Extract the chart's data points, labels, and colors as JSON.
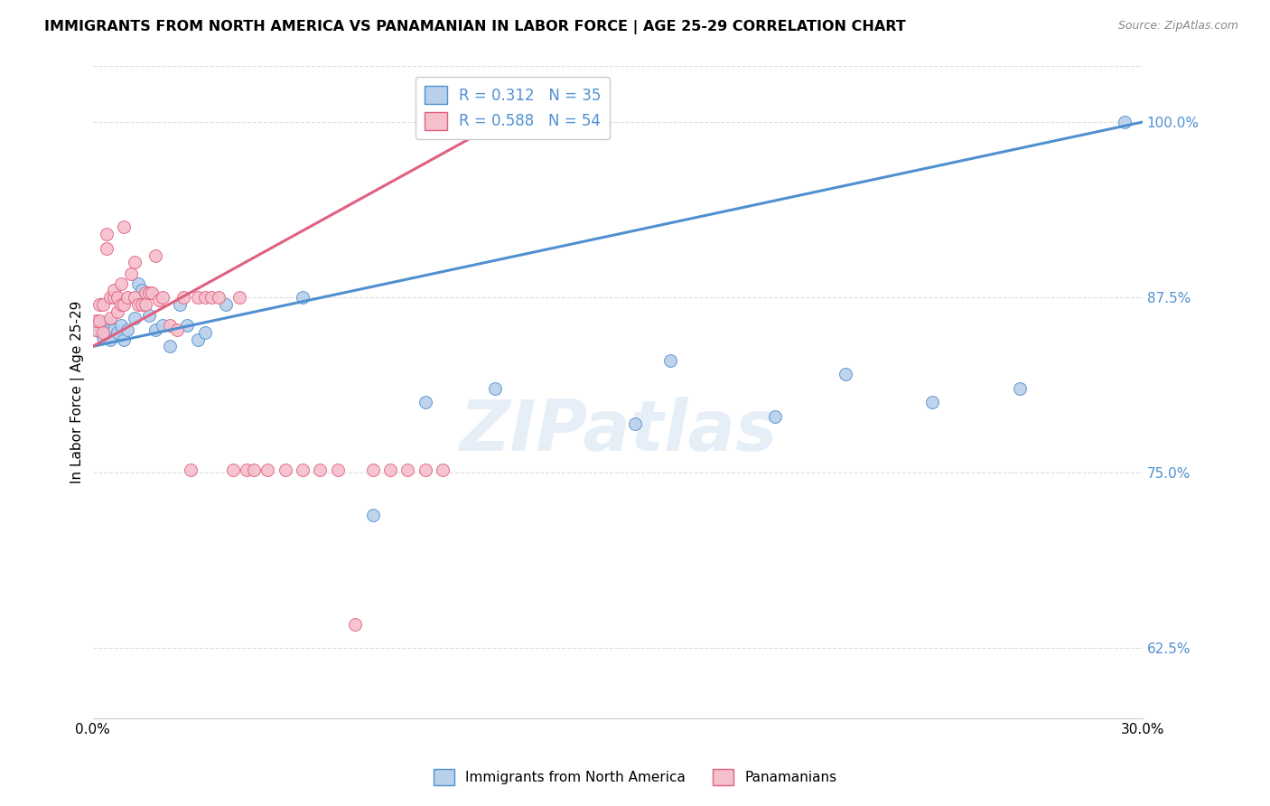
{
  "title": "IMMIGRANTS FROM NORTH AMERICA VS PANAMANIAN IN LABOR FORCE | AGE 25-29 CORRELATION CHART",
  "source": "Source: ZipAtlas.com",
  "ylabel": "In Labor Force | Age 25-29",
  "xlim": [
    0.0,
    0.3
  ],
  "ylim": [
    0.575,
    1.04
  ],
  "yticks": [
    0.625,
    0.75,
    0.875,
    1.0
  ],
  "ytick_labels": [
    "62.5%",
    "75.0%",
    "87.5%",
    "100.0%"
  ],
  "xticks": [
    0.0,
    0.05,
    0.1,
    0.15,
    0.2,
    0.25,
    0.3
  ],
  "xtick_labels": [
    "0.0%",
    "",
    "",
    "",
    "",
    "",
    "30.0%"
  ],
  "blue_R": 0.312,
  "blue_N": 35,
  "pink_R": 0.588,
  "pink_N": 54,
  "blue_color": "#b8d0ea",
  "pink_color": "#f5bfcc",
  "blue_line_color": "#5090d0",
  "pink_line_color": "#e06080",
  "legend_blue_label": "Immigrants from North America",
  "legend_pink_label": "Panamanians",
  "watermark": "ZIPatlas",
  "blue_x": [
    0.001,
    0.002,
    0.003,
    0.003,
    0.004,
    0.005,
    0.005,
    0.006,
    0.007,
    0.008,
    0.009,
    0.01,
    0.012,
    0.013,
    0.014,
    0.016,
    0.018,
    0.02,
    0.022,
    0.025,
    0.027,
    0.03,
    0.032,
    0.038,
    0.06,
    0.08,
    0.095,
    0.115,
    0.155,
    0.165,
    0.195,
    0.215,
    0.24,
    0.265,
    0.295
  ],
  "blue_y": [
    0.852,
    0.852,
    0.857,
    0.847,
    0.857,
    0.852,
    0.845,
    0.852,
    0.85,
    0.855,
    0.845,
    0.852,
    0.86,
    0.885,
    0.88,
    0.862,
    0.852,
    0.855,
    0.84,
    0.87,
    0.855,
    0.845,
    0.85,
    0.87,
    0.875,
    0.72,
    0.8,
    0.81,
    0.785,
    0.83,
    0.79,
    0.82,
    0.8,
    0.81,
    1.0
  ],
  "pink_x": [
    0.001,
    0.001,
    0.002,
    0.002,
    0.003,
    0.003,
    0.004,
    0.004,
    0.005,
    0.005,
    0.006,
    0.006,
    0.007,
    0.007,
    0.008,
    0.008,
    0.009,
    0.009,
    0.01,
    0.011,
    0.012,
    0.012,
    0.013,
    0.014,
    0.015,
    0.015,
    0.016,
    0.017,
    0.018,
    0.019,
    0.02,
    0.022,
    0.024,
    0.026,
    0.028,
    0.03,
    0.032,
    0.034,
    0.036,
    0.04,
    0.042,
    0.044,
    0.046,
    0.05,
    0.055,
    0.06,
    0.065,
    0.07,
    0.075,
    0.08,
    0.085,
    0.09,
    0.095,
    0.1
  ],
  "pink_y": [
    0.852,
    0.858,
    0.87,
    0.858,
    0.87,
    0.85,
    0.92,
    0.91,
    0.86,
    0.875,
    0.875,
    0.88,
    0.875,
    0.865,
    0.885,
    0.87,
    0.925,
    0.87,
    0.875,
    0.892,
    0.875,
    0.9,
    0.87,
    0.87,
    0.878,
    0.87,
    0.878,
    0.878,
    0.905,
    0.873,
    0.875,
    0.855,
    0.852,
    0.875,
    0.752,
    0.875,
    0.875,
    0.875,
    0.875,
    0.752,
    0.875,
    0.752,
    0.752,
    0.752,
    0.752,
    0.752,
    0.752,
    0.752,
    0.642,
    0.752,
    0.752,
    0.752,
    0.752,
    0.752
  ],
  "blue_trend": [
    0.84,
    1.0
  ],
  "blue_trend_x": [
    0.0,
    0.3
  ],
  "pink_trend_x": [
    0.0,
    0.12
  ],
  "pink_trend": [
    0.84,
    1.005
  ]
}
